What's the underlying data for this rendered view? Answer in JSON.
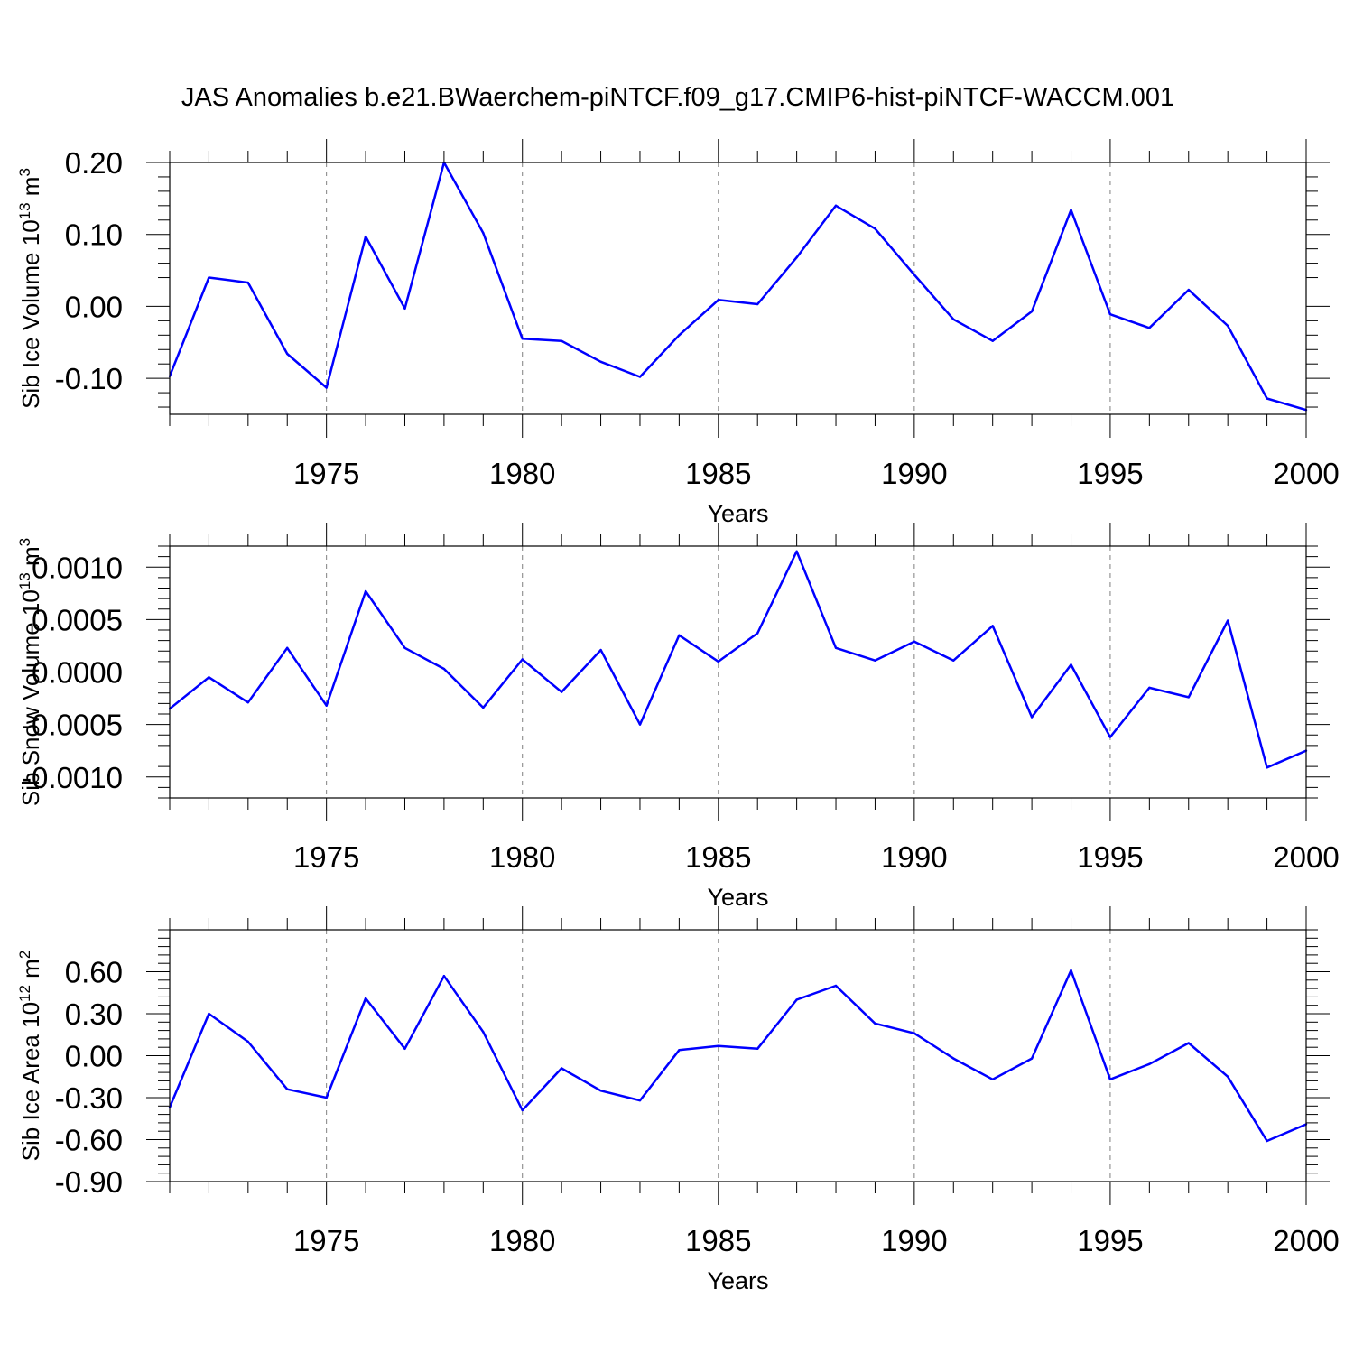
{
  "title": "JAS Anomalies b.e21.BWaerchem-piNTCF.f09_g17.CMIP6-hist-piNTCF-WACCM.001",
  "colors": {
    "line": "#0000ff",
    "axis": "#000000",
    "grid": "#808080"
  },
  "chart_data": [
    {
      "type": "line",
      "ylabel": {
        "main": "Sib Ice Volume 10",
        "exp": "13",
        "unit": " m",
        "unit_exp": "3"
      },
      "xlabel": "Years",
      "xlim": [
        1971,
        2000
      ],
      "ylim": [
        -0.15,
        0.2
      ],
      "yticks": [
        -0.1,
        0.0,
        0.1,
        0.2
      ],
      "ytick_labels": [
        "-0.10",
        "0.00",
        "0.10",
        "0.20"
      ],
      "xticks": [
        1975,
        1980,
        1985,
        1990,
        1995,
        2000
      ],
      "xtick_labels": [
        "1975",
        "1980",
        "1985",
        "1990",
        "1995",
        "2000"
      ],
      "x": [
        1971,
        1972,
        1973,
        1974,
        1975,
        1976,
        1977,
        1978,
        1979,
        1980,
        1981,
        1982,
        1983,
        1984,
        1985,
        1986,
        1987,
        1988,
        1989,
        1990,
        1991,
        1992,
        1993,
        1994,
        1995,
        1996,
        1997,
        1998,
        1999,
        2000
      ],
      "values": [
        -0.097,
        0.04,
        0.033,
        -0.066,
        -0.113,
        0.097,
        -0.003,
        0.2,
        0.102,
        -0.045,
        -0.048,
        -0.077,
        -0.098,
        -0.04,
        0.009,
        0.003,
        0.068,
        0.14,
        0.108,
        0.044,
        -0.018,
        -0.048,
        -0.007,
        0.134,
        -0.011,
        -0.03,
        0.023,
        -0.027,
        -0.128,
        -0.144
      ]
    },
    {
      "type": "line",
      "ylabel": {
        "main": "Sib Snow Volume 10",
        "exp": "13",
        "unit": " m",
        "unit_exp": "3"
      },
      "xlabel": "Years",
      "xlim": [
        1971,
        2000
      ],
      "ylim": [
        -0.0012,
        0.0012
      ],
      "yticks": [
        -0.001,
        -0.0005,
        0.0,
        0.0005,
        0.001
      ],
      "ytick_labels": [
        "-0.0010",
        "-0.0005",
        "0.0000",
        "0.0005",
        "0.0010"
      ],
      "xticks": [
        1975,
        1980,
        1985,
        1990,
        1995,
        2000
      ],
      "xtick_labels": [
        "1975",
        "1980",
        "1985",
        "1990",
        "1995",
        "2000"
      ],
      "x": [
        1971,
        1972,
        1973,
        1974,
        1975,
        1976,
        1977,
        1978,
        1979,
        1980,
        1981,
        1982,
        1983,
        1984,
        1985,
        1986,
        1987,
        1988,
        1989,
        1990,
        1991,
        1992,
        1993,
        1994,
        1995,
        1996,
        1997,
        1998,
        1999,
        2000
      ],
      "values": [
        -0.00035,
        -5e-05,
        -0.00029,
        0.00023,
        -0.00032,
        0.00077,
        0.00023,
        3e-05,
        -0.00034,
        0.00012,
        -0.00019,
        0.00021,
        -0.0005,
        0.00035,
        0.0001,
        0.00037,
        0.00115,
        0.00023,
        0.00011,
        0.00029,
        0.00011,
        0.00044,
        -0.00043,
        7e-05,
        -0.00062,
        -0.00015,
        -0.00024,
        0.00049,
        -0.00091,
        -0.00075
      ]
    },
    {
      "type": "line",
      "ylabel": {
        "main": "Sib Ice Area 10",
        "exp": "12",
        "unit": " m",
        "unit_exp": "2"
      },
      "xlabel": "Years",
      "xlim": [
        1971,
        2000
      ],
      "ylim": [
        -0.9,
        0.9
      ],
      "yticks": [
        -0.9,
        -0.6,
        -0.3,
        0.0,
        0.3,
        0.6
      ],
      "ytick_labels": [
        "-0.90",
        "-0.60",
        "-0.30",
        "0.00",
        "0.30",
        "0.60"
      ],
      "xticks": [
        1975,
        1980,
        1985,
        1990,
        1995,
        2000
      ],
      "xtick_labels": [
        "1975",
        "1980",
        "1985",
        "1990",
        "1995",
        "2000"
      ],
      "x": [
        1971,
        1972,
        1973,
        1974,
        1975,
        1976,
        1977,
        1978,
        1979,
        1980,
        1981,
        1982,
        1983,
        1984,
        1985,
        1986,
        1987,
        1988,
        1989,
        1990,
        1991,
        1992,
        1993,
        1994,
        1995,
        1996,
        1997,
        1998,
        1999,
        2000
      ],
      "values": [
        -0.37,
        0.3,
        0.1,
        -0.24,
        -0.3,
        0.41,
        0.05,
        0.57,
        0.17,
        -0.39,
        -0.09,
        -0.25,
        -0.32,
        0.04,
        0.07,
        0.05,
        0.4,
        0.5,
        0.23,
        0.16,
        -0.02,
        -0.17,
        -0.02,
        0.61,
        -0.17,
        -0.06,
        0.09,
        -0.15,
        -0.61,
        -0.49
      ]
    }
  ]
}
